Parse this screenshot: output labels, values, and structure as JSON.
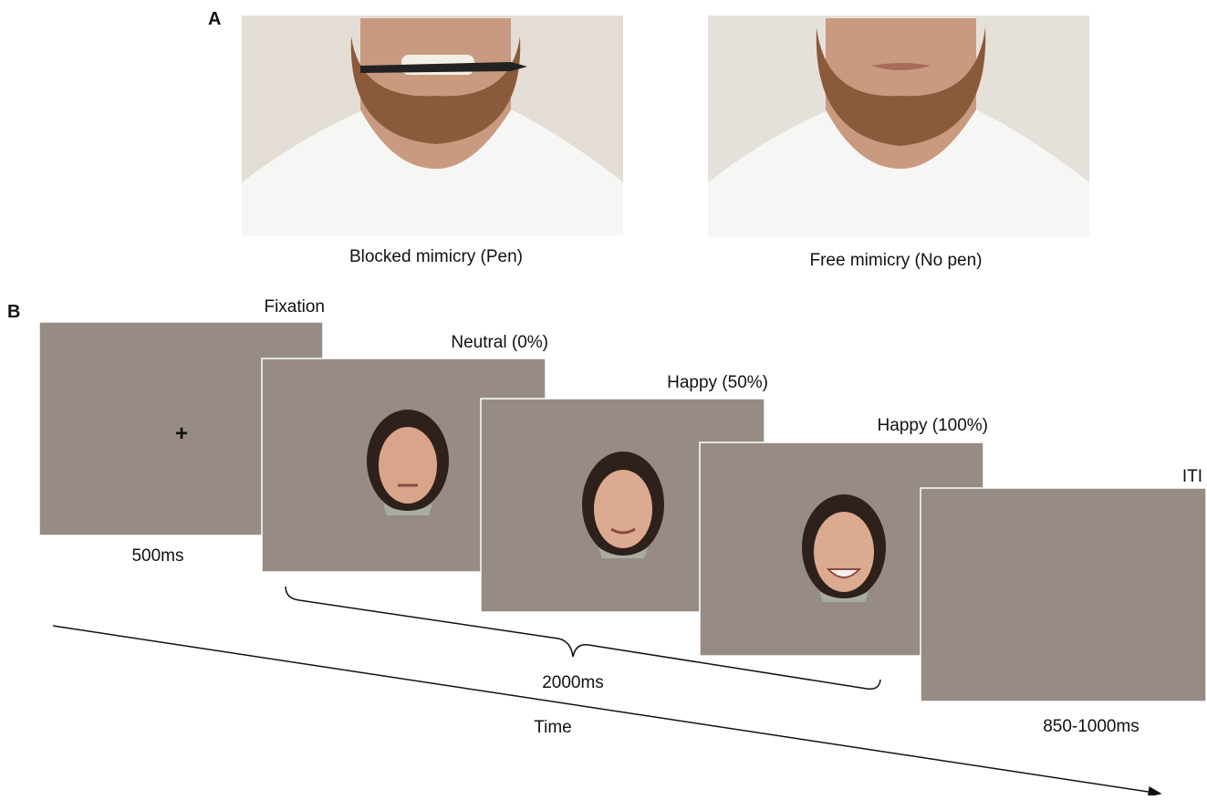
{
  "panel_a": {
    "label": "A",
    "images": [
      {
        "caption": "Blocked mimicry (Pen)"
      },
      {
        "caption": "Free mimicry (No pen)"
      }
    ]
  },
  "panel_b": {
    "label": "B",
    "fixation_symbol": "+",
    "screens": [
      {
        "label": "Fixation",
        "duration": "500ms"
      },
      {
        "label": "Neutral (0%)"
      },
      {
        "label": "Happy (50%)"
      },
      {
        "label": "Happy (100%)"
      },
      {
        "label": "ITI",
        "duration": "850-1000ms"
      }
    ],
    "stimulus_duration": "2000ms",
    "axis_label": "Time"
  }
}
